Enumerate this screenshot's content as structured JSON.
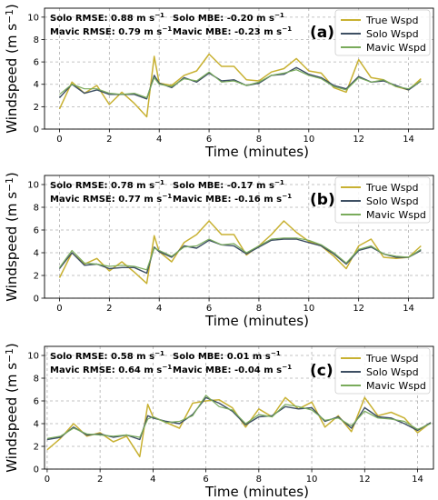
{
  "chart_data": [
    {
      "type": "line",
      "panel_label": "(a)",
      "xlabel": "Time (minutes)",
      "ylabel": "Windspeed (m s",
      "ylabel_sup": "−1",
      "xlim": [
        -0.6,
        15.0
      ],
      "ylim": [
        0,
        10.8
      ],
      "xticks": [
        0,
        2,
        4,
        6,
        8,
        10,
        12,
        14
      ],
      "yticks": [
        0,
        2,
        4,
        6,
        8,
        10
      ],
      "grid": true,
      "legend_position": "top-right",
      "stats": {
        "solo_rmse": "Solo RMSE:   0.88 m s",
        "solo_rmse_sup": "−1",
        "solo_mbe": "Solo MBE:   -0.20 m s",
        "solo_mbe_sup": "−1",
        "mavic_rmse": "Mavic RMSE: 0.79 m s",
        "mavic_rmse_sup": "−1",
        "mavic_mbe": "Mavic MBE: -0.23 m s",
        "mavic_mbe_sup": "−1"
      },
      "x": [
        0,
        0.5,
        1,
        1.5,
        2,
        2.5,
        3,
        3.5,
        3.8,
        4,
        4.5,
        5,
        5.5,
        6,
        6.5,
        7,
        7.5,
        8,
        8.5,
        9,
        9.5,
        10,
        10.5,
        11,
        11.5,
        12,
        12.5,
        13,
        13.5,
        14,
        14.5
      ],
      "series": [
        {
          "name": "True Wspd",
          "color": "#c8b132",
          "width": 1.5,
          "values": [
            1.8,
            4.2,
            3.2,
            3.9,
            2.2,
            3.3,
            2.3,
            1.1,
            6.5,
            4.1,
            3.9,
            4.8,
            5.2,
            6.7,
            5.6,
            5.6,
            4.4,
            4.3,
            5.1,
            5.4,
            6.3,
            5.2,
            5.0,
            3.7,
            3.3,
            6.2,
            4.6,
            4.4,
            3.8,
            3.5,
            4.5
          ]
        },
        {
          "name": "Solo Wspd",
          "color": "#3d4f63",
          "width": 1.4,
          "values": [
            2.8,
            4.0,
            3.2,
            3.5,
            3.1,
            3.1,
            3.1,
            2.7,
            4.8,
            4.1,
            3.7,
            4.6,
            4.2,
            5.0,
            4.3,
            4.4,
            3.9,
            4.1,
            4.8,
            4.9,
            5.5,
            4.9,
            4.6,
            3.9,
            3.6,
            4.7,
            4.2,
            4.3,
            3.9,
            3.5,
            4.3
          ]
        },
        {
          "name": "Mavic Wspd",
          "color": "#79ab5b",
          "width": 1.2,
          "values": [
            3.1,
            4.0,
            3.6,
            3.6,
            3.2,
            3.1,
            3.2,
            2.8,
            4.6,
            4.0,
            3.8,
            4.5,
            4.3,
            5.1,
            4.2,
            4.3,
            3.9,
            4.2,
            4.8,
            5.0,
            5.3,
            4.8,
            4.5,
            3.8,
            3.5,
            4.6,
            4.2,
            4.4,
            3.8,
            3.6,
            4.3
          ]
        }
      ]
    },
    {
      "type": "line",
      "panel_label": "(b)",
      "xlabel": "Time (minutes)",
      "ylabel": "Windspeed (m s",
      "ylabel_sup": "−1",
      "xlim": [
        -0.6,
        15.0
      ],
      "ylim": [
        0,
        10.8
      ],
      "xticks": [
        0,
        2,
        4,
        6,
        8,
        10,
        12,
        14
      ],
      "yticks": [
        0,
        2,
        4,
        6,
        8,
        10
      ],
      "grid": true,
      "legend_position": "top-right",
      "stats": {
        "solo_rmse": "Solo RMSE:   0.78 m s",
        "solo_rmse_sup": "−1",
        "solo_mbe": "Solo MBE:   -0.17 m s",
        "solo_mbe_sup": "−1",
        "mavic_rmse": "Mavic RMSE: 0.77 m s",
        "mavic_rmse_sup": "−1",
        "mavic_mbe": "Mavic MBE: -0.16 m s",
        "mavic_mbe_sup": "−1"
      },
      "x": [
        0,
        0.5,
        1,
        1.5,
        2,
        2.5,
        3,
        3.5,
        3.8,
        4,
        4.5,
        5,
        5.5,
        6,
        6.5,
        7,
        7.5,
        8,
        8.5,
        9,
        9.5,
        10,
        10.5,
        11,
        11.5,
        12,
        12.5,
        13,
        13.5,
        14,
        14.5
      ],
      "series": [
        {
          "name": "True Wspd",
          "color": "#c8b132",
          "width": 1.5,
          "values": [
            1.8,
            4.0,
            3.0,
            3.5,
            2.4,
            3.2,
            2.3,
            1.3,
            5.5,
            4.1,
            3.2,
            4.9,
            5.6,
            6.8,
            5.6,
            5.6,
            3.8,
            4.6,
            5.6,
            6.8,
            5.8,
            5.0,
            4.6,
            3.7,
            2.6,
            4.6,
            5.2,
            3.6,
            3.5,
            3.6,
            4.6
          ]
        },
        {
          "name": "Solo Wspd",
          "color": "#3d4f63",
          "width": 1.4,
          "values": [
            2.6,
            4.0,
            2.9,
            3.0,
            2.6,
            2.7,
            2.7,
            2.2,
            4.5,
            4.1,
            3.6,
            4.6,
            4.4,
            5.1,
            4.7,
            4.6,
            3.9,
            4.5,
            5.1,
            5.2,
            5.2,
            4.9,
            4.6,
            3.9,
            3.0,
            4.2,
            4.5,
            3.9,
            3.6,
            3.6,
            4.2
          ]
        },
        {
          "name": "Mavic Wspd",
          "color": "#79ab5b",
          "width": 1.2,
          "values": [
            2.7,
            4.2,
            3.1,
            3.0,
            2.8,
            2.9,
            2.8,
            2.5,
            4.4,
            4.2,
            3.7,
            4.5,
            4.6,
            5.2,
            4.7,
            4.8,
            4.0,
            4.6,
            5.2,
            5.3,
            5.3,
            5.1,
            4.7,
            4.0,
            3.1,
            4.3,
            4.6,
            3.9,
            3.7,
            3.6,
            4.3
          ]
        }
      ]
    },
    {
      "type": "line",
      "panel_label": "(c)",
      "xlabel": "Time (minutes)",
      "ylabel": "Windspeed (m s",
      "ylabel_sup": "−1",
      "xlim": [
        -0.1,
        14.6
      ],
      "ylim": [
        0,
        10.8
      ],
      "xticks": [
        0,
        2,
        4,
        6,
        8,
        10,
        12,
        14
      ],
      "yticks": [
        0,
        2,
        4,
        6,
        8,
        10
      ],
      "grid": true,
      "legend_position": "top-right",
      "stats": {
        "solo_rmse": "Solo RMSE:   0.58 m s",
        "solo_rmse_sup": "−1",
        "solo_mbe": "Solo MBE:   0.01 m s",
        "solo_mbe_sup": "−1",
        "mavic_rmse": "Mavic RMSE: 0.64 m s",
        "mavic_rmse_sup": "−1",
        "mavic_mbe": "Mavic MBE: -0.04 m s",
        "mavic_mbe_sup": "−1"
      },
      "x": [
        0,
        0.5,
        1,
        1.5,
        2,
        2.5,
        3,
        3.5,
        3.8,
        4,
        4.5,
        5,
        5.5,
        6,
        6.5,
        7,
        7.5,
        8,
        8.5,
        9,
        9.5,
        10,
        10.5,
        11,
        11.5,
        12,
        12.5,
        13,
        13.5,
        14,
        14.5
      ],
      "series": [
        {
          "name": "True Wspd",
          "color": "#c8b132",
          "width": 1.5,
          "values": [
            1.7,
            2.7,
            4.0,
            2.9,
            3.2,
            2.4,
            2.9,
            1.1,
            5.7,
            4.6,
            4.1,
            3.6,
            5.8,
            6.0,
            6.1,
            5.4,
            3.7,
            5.3,
            4.6,
            6.3,
            5.3,
            5.9,
            3.7,
            4.7,
            3.3,
            6.3,
            4.7,
            5.0,
            4.5,
            3.2,
            4.1
          ]
        },
        {
          "name": "Solo Wspd",
          "color": "#3d4f63",
          "width": 1.4,
          "values": [
            2.6,
            2.8,
            3.7,
            3.0,
            3.1,
            2.8,
            3.0,
            2.6,
            4.7,
            4.5,
            4.2,
            4.0,
            4.8,
            6.3,
            5.8,
            5.1,
            3.9,
            4.6,
            4.7,
            5.5,
            5.3,
            5.4,
            4.2,
            4.6,
            3.6,
            5.4,
            4.6,
            4.5,
            4.0,
            3.4,
            4.1
          ]
        },
        {
          "name": "Mavic Wspd",
          "color": "#79ab5b",
          "width": 1.2,
          "values": [
            2.7,
            2.9,
            3.6,
            3.1,
            3.0,
            2.9,
            3.0,
            2.8,
            4.4,
            4.6,
            4.1,
            4.2,
            4.7,
            6.5,
            5.5,
            5.2,
            4.0,
            4.8,
            4.6,
            5.7,
            5.5,
            5.2,
            4.3,
            4.5,
            3.8,
            5.1,
            4.5,
            4.4,
            4.2,
            3.5,
            4.0
          ]
        }
      ]
    }
  ]
}
